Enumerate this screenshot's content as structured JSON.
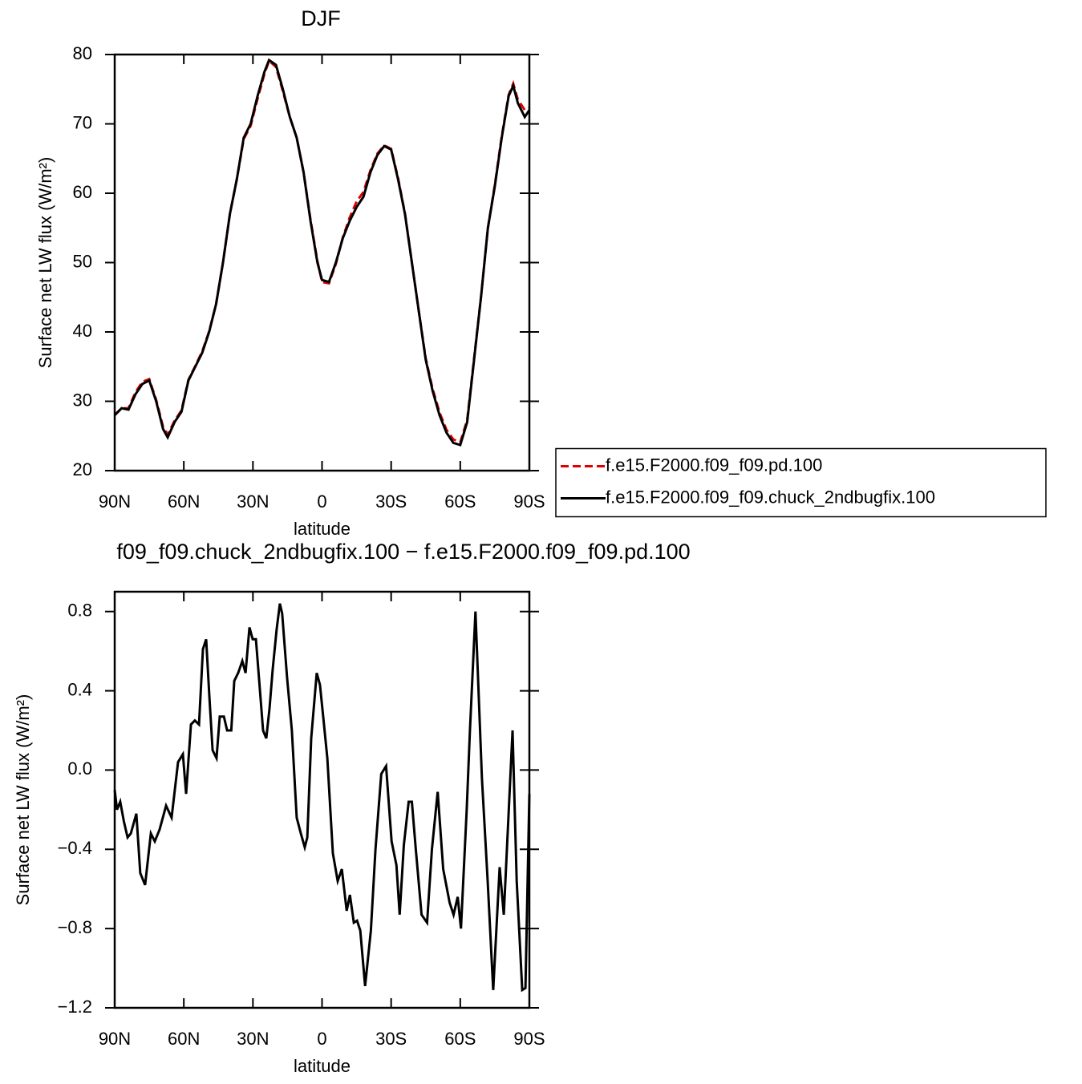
{
  "chart_data": [
    {
      "type": "line",
      "title": "DJF",
      "x_label": "latitude",
      "y_label": "Surface net LW flux (W/m²)",
      "xlim": [
        90,
        -90
      ],
      "xticks": [
        {
          "value": 90,
          "label": "90N"
        },
        {
          "value": 60,
          "label": "60N"
        },
        {
          "value": 30,
          "label": "30N"
        },
        0,
        {
          "value": -30,
          "label": "30S"
        },
        {
          "value": -60,
          "label": "60S"
        },
        {
          "value": -90,
          "label": "90S"
        }
      ],
      "ylim": [
        20,
        80
      ],
      "yticks": [
        20,
        30,
        40,
        50,
        60,
        70,
        80
      ],
      "legend": "right",
      "x": [
        90,
        87,
        84,
        81,
        78,
        75,
        72,
        69,
        67,
        64,
        61,
        58,
        55,
        52,
        49,
        46,
        43,
        40,
        37,
        34,
        31,
        28,
        25,
        23,
        20,
        17,
        14,
        11,
        8,
        5,
        2,
        0,
        -3,
        -6,
        -9,
        -12,
        -15,
        -18,
        -21,
        -24,
        -27,
        -30,
        -33,
        -36,
        -39,
        -42,
        -45,
        -48,
        -51,
        -54,
        -57,
        -60,
        -63,
        -66,
        -69,
        -72,
        -75,
        -78,
        -81,
        -83,
        -85,
        -88,
        -90
      ],
      "series": [
        {
          "name": "f.e15.F2000.f09_f09.pd.100",
          "color": "#e00000",
          "dash": true,
          "values": [
            28,
            29,
            29,
            31.3,
            32.8,
            33.2,
            30.2,
            26.3,
            25.2,
            27.2,
            28.7,
            33.1,
            35.1,
            37.2,
            40.1,
            44,
            50,
            57,
            62,
            67.8,
            69.7,
            73.6,
            77.2,
            79.1,
            78.2,
            74.7,
            71,
            68,
            63,
            56.2,
            50.2,
            47.2,
            47,
            49.8,
            53.6,
            56.5,
            58.8,
            60.2,
            63.3,
            65.7,
            66.9,
            66.4,
            62.2,
            57.1,
            50,
            43,
            36.2,
            31.8,
            28.4,
            25.9,
            24.5,
            24.1,
            27.3,
            36.2,
            45,
            55,
            61.2,
            68.2,
            74.2,
            75.8,
            73.5,
            72,
            72.3
          ]
        },
        {
          "name": "f.e15.F2000.f09_f09.chuck_2ndbugfix.100",
          "color": "#000000",
          "dash": false,
          "values": [
            28,
            29,
            28.8,
            31,
            32.5,
            33,
            30,
            26,
            24.8,
            27,
            28.5,
            33,
            35,
            37,
            40,
            44,
            50,
            57,
            62,
            68,
            70,
            74,
            77.5,
            79.2,
            78.5,
            75,
            71,
            68,
            63,
            56,
            50,
            47.5,
            47.2,
            50,
            53.5,
            56,
            58,
            59.5,
            63,
            65.5,
            66.8,
            66.3,
            62,
            57,
            50,
            43,
            36,
            31.5,
            28,
            25.5,
            24,
            23.7,
            27,
            36,
            45,
            55,
            61,
            68,
            74,
            75.5,
            73,
            71,
            72
          ]
        }
      ]
    },
    {
      "type": "line",
      "title": "f09_f09.chuck_2ndbugfix.100 − f.e15.F2000.f09_f09.pd.100",
      "x_label": "latitude",
      "y_label": "Surface net LW flux (W/m²)",
      "xlim": [
        90,
        -90
      ],
      "xticks": [
        {
          "value": 90,
          "label": "90N"
        },
        {
          "value": 60,
          "label": "60N"
        },
        {
          "value": 30,
          "label": "30N"
        },
        0,
        {
          "value": -30,
          "label": "30S"
        },
        {
          "value": -60,
          "label": "60S"
        },
        {
          "value": -90,
          "label": "90S"
        }
      ],
      "ylim": [
        -1.2,
        0.9
      ],
      "yticks": [
        {
          "value": -1.2,
          "label": "−1.2"
        },
        {
          "value": -0.8,
          "label": "−0.8"
        },
        {
          "value": -0.4,
          "label": "−0.4"
        },
        {
          "value": 0,
          "label": "0.0"
        },
        0.4,
        0.8
      ],
      "x": [
        90,
        89,
        87.6,
        86,
        84.4,
        83,
        80.6,
        78.9,
        76.8,
        74.3,
        72.6,
        70.5,
        67.7,
        65.3,
        62.5,
        60.4,
        59,
        56.9,
        55.2,
        53.4,
        51.7,
        50.3,
        48.9,
        47.5,
        45.8,
        44.4,
        42.6,
        41.2,
        39.4,
        38.1,
        36.4,
        34.6,
        33.2,
        31.5,
        30.1,
        28.7,
        27,
        25.6,
        24.2,
        22.8,
        21.4,
        19.7,
        18.3,
        17.3,
        15.2,
        13.1,
        11,
        9.2,
        7.5,
        6.4,
        4.7,
        2.3,
        0.9,
        -0.5,
        -2.3,
        -4.7,
        -6.8,
        -8.6,
        -10.7,
        -12.1,
        -13.8,
        -15.2,
        -16.6,
        -18.7,
        -21.2,
        -23.2,
        -25.7,
        -27.8,
        -30.2,
        -32.3,
        -33.7,
        -35.5,
        -37.6,
        -39,
        -40.7,
        -43.2,
        -45.6,
        -47.7,
        -50.2,
        -52.6,
        -55.4,
        -57.1,
        -58.9,
        -60.3,
        -62.8,
        -64.2,
        -66.6,
        -69.4,
        -71.9,
        -74.3,
        -77.1,
        -78.9,
        -82.7,
        -84.5,
        -86.9,
        -88.3,
        -90
      ],
      "series": [
        {
          "color": "#000000",
          "dash": false,
          "values": [
            -0.1,
            -0.2,
            -0.16,
            -0.26,
            -0.34,
            -0.32,
            -0.22,
            -0.52,
            -0.58,
            -0.32,
            -0.36,
            -0.3,
            -0.18,
            -0.24,
            0.04,
            0.08,
            -0.12,
            0.23,
            0.25,
            0.23,
            0.61,
            0.66,
            0.37,
            0.1,
            0.06,
            0.27,
            0.27,
            0.2,
            0.2,
            0.45,
            0.49,
            0.55,
            0.49,
            0.72,
            0.66,
            0.66,
            0.41,
            0.2,
            0.16,
            0.31,
            0.51,
            0.71,
            0.84,
            0.79,
            0.47,
            0.2,
            -0.24,
            -0.32,
            -0.39,
            -0.34,
            0.16,
            0.49,
            0.43,
            0.27,
            0.06,
            -0.42,
            -0.56,
            -0.5,
            -0.71,
            -0.63,
            -0.77,
            -0.76,
            -0.81,
            -1.09,
            -0.81,
            -0.4,
            -0.02,
            0.02,
            -0.36,
            -0.48,
            -0.73,
            -0.38,
            -0.16,
            -0.16,
            -0.4,
            -0.73,
            -0.77,
            -0.4,
            -0.11,
            -0.5,
            -0.67,
            -0.73,
            -0.64,
            -0.8,
            -0.2,
            0.2,
            0.8,
            -0.04,
            -0.56,
            -1.11,
            -0.49,
            -0.73,
            0.2,
            -0.56,
            -1.11,
            -1.1,
            -0.12
          ]
        }
      ]
    }
  ]
}
